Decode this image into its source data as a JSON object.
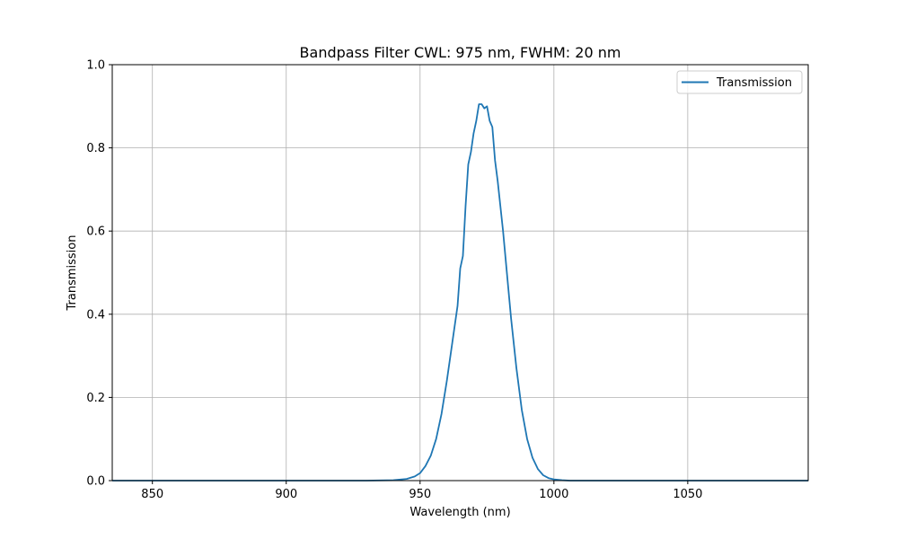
{
  "chart_data": {
    "type": "line",
    "title": "Bandpass Filter CWL: 975 nm, FWHM: 20 nm",
    "xlabel": "Wavelength (nm)",
    "ylabel": "Transmission",
    "xlim": [
      835,
      1095
    ],
    "ylim": [
      0,
      1.0
    ],
    "xticks": [
      850,
      900,
      950,
      1000,
      1050
    ],
    "yticks": [
      0.0,
      0.2,
      0.4,
      0.6,
      0.8,
      1.0
    ],
    "grid": true,
    "legend_position": "top-right",
    "series": [
      {
        "name": "Transmission",
        "color": "#1f77b4",
        "x": [
          835,
          900,
          930,
          940,
          945,
          948,
          950,
          952,
          954,
          956,
          958,
          960,
          962,
          964,
          965,
          966,
          967,
          968,
          969,
          970,
          971,
          972,
          973,
          974,
          975,
          976,
          977,
          978,
          979,
          980,
          981,
          982,
          983,
          984,
          986,
          988,
          990,
          992,
          994,
          996,
          998,
          1000,
          1003,
          1006,
          1010,
          1020,
          1050,
          1095
        ],
        "y": [
          0.0,
          0.0,
          0.0,
          0.001,
          0.004,
          0.01,
          0.018,
          0.035,
          0.06,
          0.1,
          0.16,
          0.24,
          0.33,
          0.42,
          0.51,
          0.54,
          0.66,
          0.76,
          0.79,
          0.835,
          0.865,
          0.905,
          0.905,
          0.895,
          0.9,
          0.865,
          0.85,
          0.77,
          0.72,
          0.66,
          0.6,
          0.53,
          0.46,
          0.39,
          0.27,
          0.17,
          0.1,
          0.055,
          0.028,
          0.013,
          0.006,
          0.003,
          0.001,
          0.0,
          0.0,
          0.0,
          0.0,
          0.0
        ]
      }
    ]
  }
}
